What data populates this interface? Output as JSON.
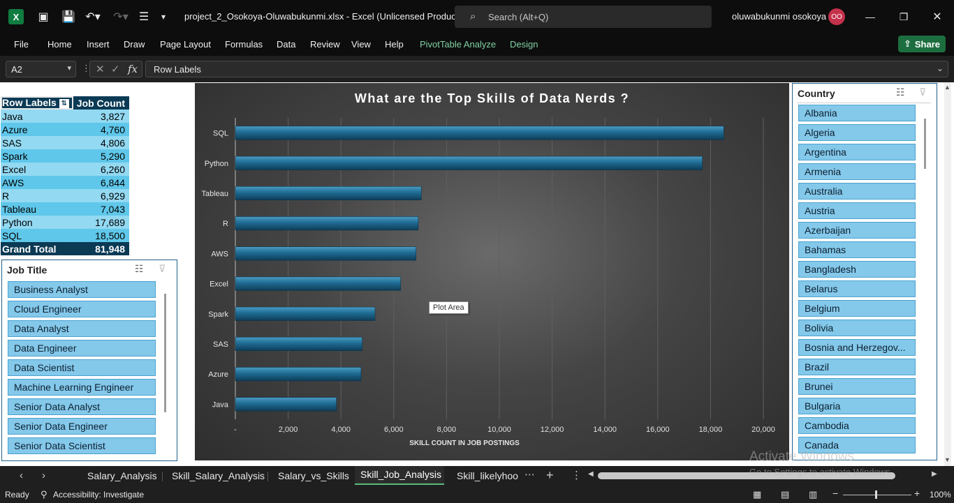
{
  "titlebar": {
    "doc_title": "project_2_Osokoya-Oluwabukunmi.xlsx  -  Excel (Unlicensed Product)",
    "search_placeholder": "Search (Alt+Q)",
    "user_name": "oluwabukunmi osokoya",
    "avatar_initials": "OO",
    "excel_logo": "X"
  },
  "menu": {
    "items": [
      "File",
      "Home",
      "Insert",
      "Draw",
      "Page Layout",
      "Formulas",
      "Data",
      "Review",
      "View",
      "Help",
      "PivotTable Analyze",
      "Design"
    ],
    "share_label": "Share"
  },
  "formula_bar": {
    "name_box": "A2",
    "fx_label": "fx",
    "content": "Row Labels"
  },
  "pivot": {
    "headers": [
      "Row Labels",
      "Job Count"
    ],
    "rows": [
      {
        "label": "Java",
        "value": "3,827"
      },
      {
        "label": "Azure",
        "value": "4,760"
      },
      {
        "label": "SAS",
        "value": "4,806"
      },
      {
        "label": "Spark",
        "value": "5,290"
      },
      {
        "label": "Excel",
        "value": "6,260"
      },
      {
        "label": "AWS",
        "value": "6,844"
      },
      {
        "label": "R",
        "value": "6,929"
      },
      {
        "label": "Tableau",
        "value": "7,043"
      },
      {
        "label": "Python",
        "value": "17,689"
      },
      {
        "label": "SQL",
        "value": "18,500"
      }
    ],
    "total_label": "Grand Total",
    "total_value": "81,948"
  },
  "job_title_slicer": {
    "title": "Job Title",
    "items": [
      "Business Analyst",
      "Cloud Engineer",
      "Data Analyst",
      "Data Engineer",
      "Data Scientist",
      "Machine Learning Engineer",
      "Senior Data Analyst",
      "Senior Data Engineer",
      "Senior Data Scientist"
    ]
  },
  "country_slicer": {
    "title": "Country",
    "items": [
      "Albania",
      "Algeria",
      "Argentina",
      "Armenia",
      "Australia",
      "Austria",
      "Azerbaijan",
      "Bahamas",
      "Bangladesh",
      "Belarus",
      "Belgium",
      "Bolivia",
      "Bosnia and Herzegov...",
      "Brazil",
      "Brunei",
      "Bulgaria",
      "Cambodia",
      "Canada"
    ]
  },
  "chart_data": {
    "type": "bar",
    "orientation": "horizontal",
    "title": "What are the Top Skills of Data Nerds ?",
    "xlabel": "SKILL COUNT IN JOB POSTINGS",
    "ylabel": "",
    "categories": [
      "SQL",
      "Python",
      "Tableau",
      "R",
      "AWS",
      "Excel",
      "Spark",
      "SAS",
      "Azure",
      "Java"
    ],
    "values": [
      18500,
      17689,
      7043,
      6929,
      6844,
      6260,
      5290,
      4806,
      4760,
      3827
    ],
    "xlim": [
      0,
      20000
    ],
    "ticks": [
      "-",
      "2,000",
      "4,000",
      "6,000",
      "8,000",
      "10,000",
      "12,000",
      "14,000",
      "16,000",
      "18,000",
      "20,000"
    ],
    "grid": true,
    "bar_color": "#1f6b93",
    "tooltip": "Plot Area"
  },
  "sheet_tabs": {
    "tabs": [
      "Salary_Analysis",
      "Skill_Salary_Analysis",
      "Salary_vs_Skills",
      "Skill_Job_Analysis",
      "Skill_likelyhoo"
    ],
    "active": "Skill_Job_Analysis"
  },
  "status": {
    "ready": "Ready",
    "accessibility": "Accessibility: Investigate",
    "zoom": "100%"
  },
  "watermark": {
    "line1": "Activate Windows",
    "line2": "Go to Settings to activate Windows."
  }
}
